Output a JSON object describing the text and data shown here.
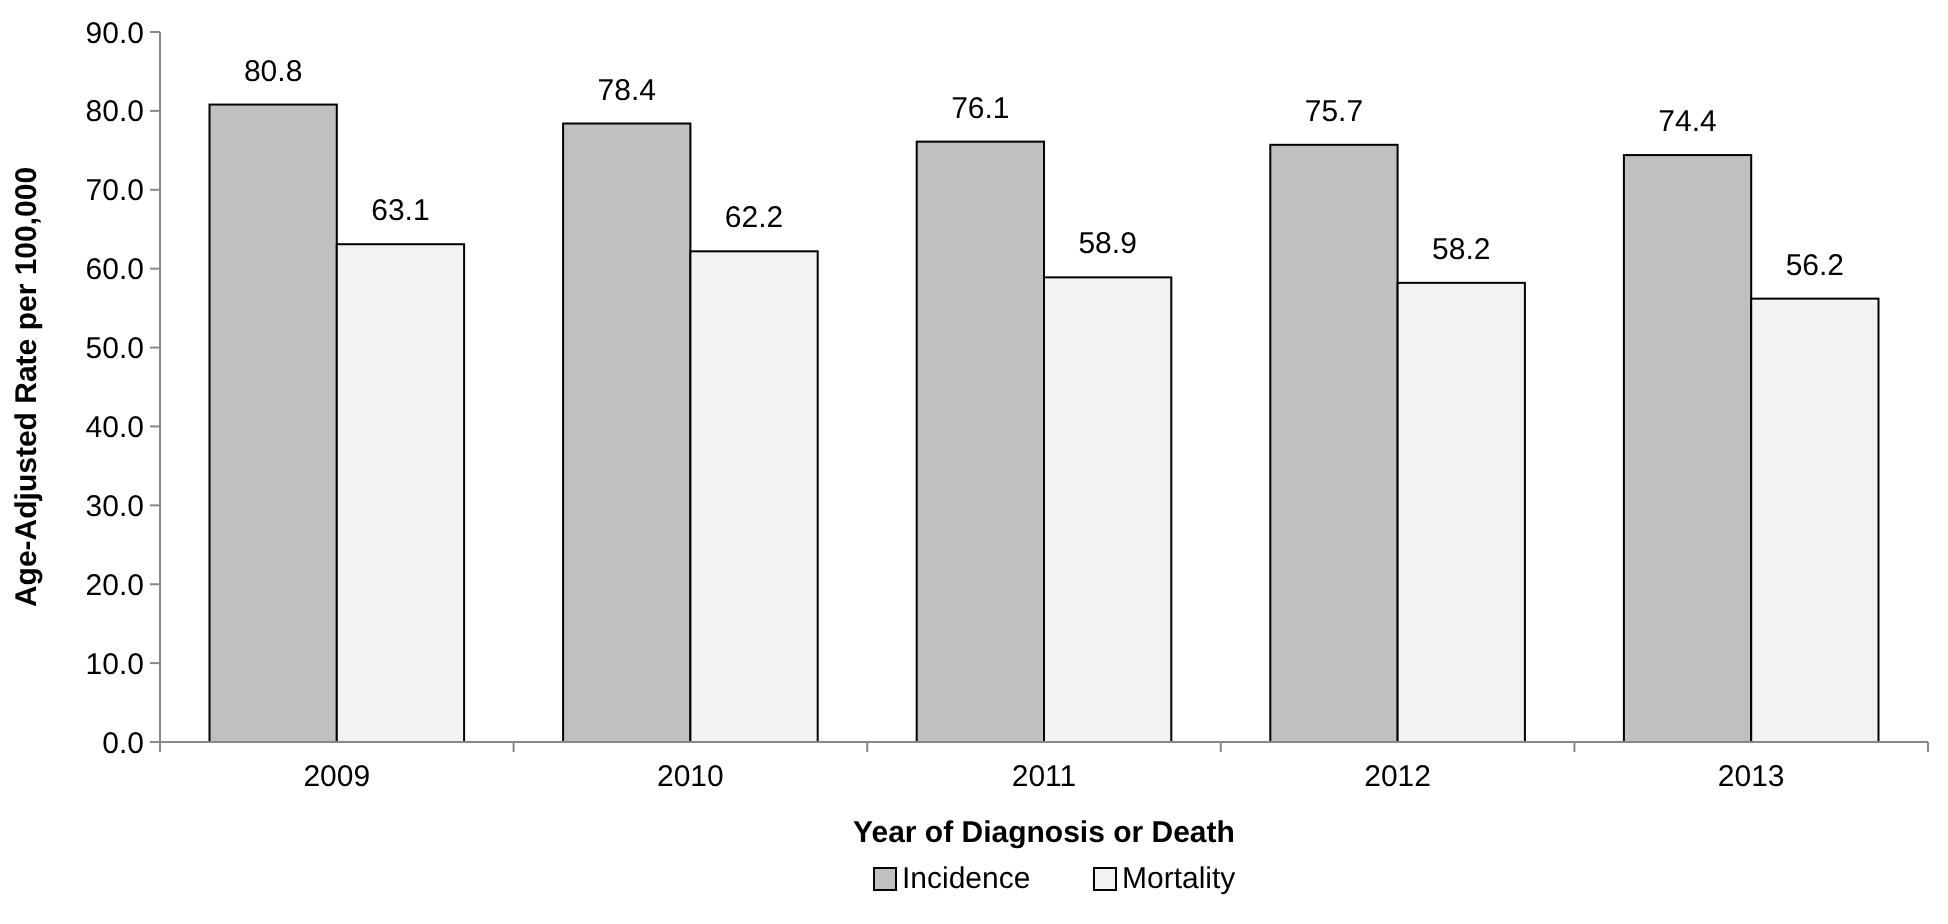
{
  "chart_data": {
    "type": "bar",
    "xlabel": "Year of Diagnosis or Death",
    "ylabel": "Age-Adjusted Rate per 100,000",
    "categories": [
      "2009",
      "2010",
      "2011",
      "2012",
      "2013"
    ],
    "series": [
      {
        "name": "Incidence",
        "color": "#c0c0c0",
        "values": [
          80.8,
          78.4,
          76.1,
          75.7,
          74.4
        ]
      },
      {
        "name": "Mortality",
        "color": "#f2f2f2",
        "values": [
          63.1,
          62.2,
          58.9,
          58.2,
          56.2
        ]
      }
    ],
    "ylim": [
      0,
      90
    ],
    "yticks": [
      {
        "value": 0,
        "label": "0.0"
      },
      {
        "value": 10,
        "label": "10.0"
      },
      {
        "value": 20,
        "label": "20.0"
      },
      {
        "value": 30,
        "label": "30.0"
      },
      {
        "value": 40,
        "label": "40.0"
      },
      {
        "value": 50,
        "label": "50.0"
      },
      {
        "value": 60,
        "label": "60.0"
      },
      {
        "value": 70,
        "label": "70.0"
      },
      {
        "value": 80,
        "label": "80.0"
      },
      {
        "value": 90,
        "label": "90.0"
      }
    ],
    "data_labels": true,
    "legend": "bottom",
    "grid": false
  }
}
